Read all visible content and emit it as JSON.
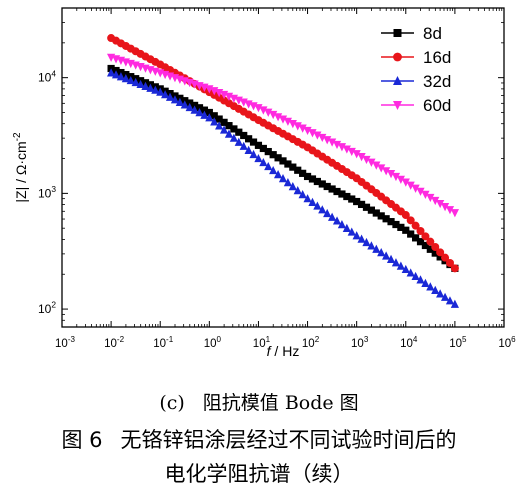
{
  "chart_data": {
    "type": "scatter",
    "title": "",
    "x_scale": "log",
    "y_scale": "log",
    "xlim": [
      0.001,
      1000000
    ],
    "ylim": [
      70,
      40000
    ],
    "x_ticks": [
      0.001,
      0.01,
      0.1,
      1,
      10,
      100,
      1000,
      10000,
      100000,
      1000000
    ],
    "x_tick_labels": [
      {
        "base": "10",
        "exp": "-3"
      },
      {
        "base": "10",
        "exp": "-2"
      },
      {
        "base": "10",
        "exp": "-1"
      },
      {
        "base": "10",
        "exp": "0"
      },
      {
        "base": "10",
        "exp": "1"
      },
      {
        "base": "10",
        "exp": "2"
      },
      {
        "base": "10",
        "exp": "3"
      },
      {
        "base": "10",
        "exp": "4"
      },
      {
        "base": "10",
        "exp": "5"
      },
      {
        "base": "10",
        "exp": "6"
      }
    ],
    "y_ticks": [
      100,
      1000,
      10000
    ],
    "y_tick_labels": [
      {
        "base": "10",
        "exp": "2"
      },
      {
        "base": "10",
        "exp": "3"
      },
      {
        "base": "10",
        "exp": "4"
      }
    ],
    "xlabel": {
      "var": "f",
      "rest": " / Hz"
    },
    "ylabel": {
      "main": "|Z| / Ω·cm",
      "exp": "-2"
    },
    "legend_position": "top-right",
    "grid": false,
    "series": [
      {
        "name": "8d",
        "color": "#000000",
        "marker": "square",
        "x": [
          0.01,
          0.1,
          1,
          10,
          100,
          1000,
          10000,
          100000
        ],
        "y": [
          12000,
          8000,
          5000,
          2600,
          1400,
          850,
          480,
          225
        ]
      },
      {
        "name": "16d",
        "color": "#e8151a",
        "marker": "circle",
        "x": [
          0.01,
          0.1,
          1,
          10,
          100,
          1000,
          10000,
          100000
        ],
        "y": [
          22000,
          13000,
          7500,
          4300,
          2500,
          1350,
          650,
          225
        ]
      },
      {
        "name": "32d",
        "color": "#1a28d6",
        "marker": "triangle-up",
        "x": [
          0.01,
          0.1,
          1,
          10,
          100,
          1000,
          10000,
          100000
        ],
        "y": [
          11000,
          7500,
          4500,
          2000,
          900,
          430,
          220,
          110
        ]
      },
      {
        "name": "60d",
        "color": "#ff2ae0",
        "marker": "triangle-down",
        "x": [
          0.01,
          0.1,
          1,
          10,
          100,
          1000,
          10000,
          100000
        ],
        "y": [
          15000,
          11000,
          8000,
          5500,
          3500,
          2200,
          1250,
          680
        ]
      }
    ]
  },
  "captions": {
    "sub_label": "(c)",
    "sub_title": "阻抗模值 Bode 图",
    "fig_number": "图 6",
    "fig_title_line1": "无铬锌铝涂层经过不同试验时间后的",
    "fig_title_line2": "电化学阻抗谱（续）"
  }
}
